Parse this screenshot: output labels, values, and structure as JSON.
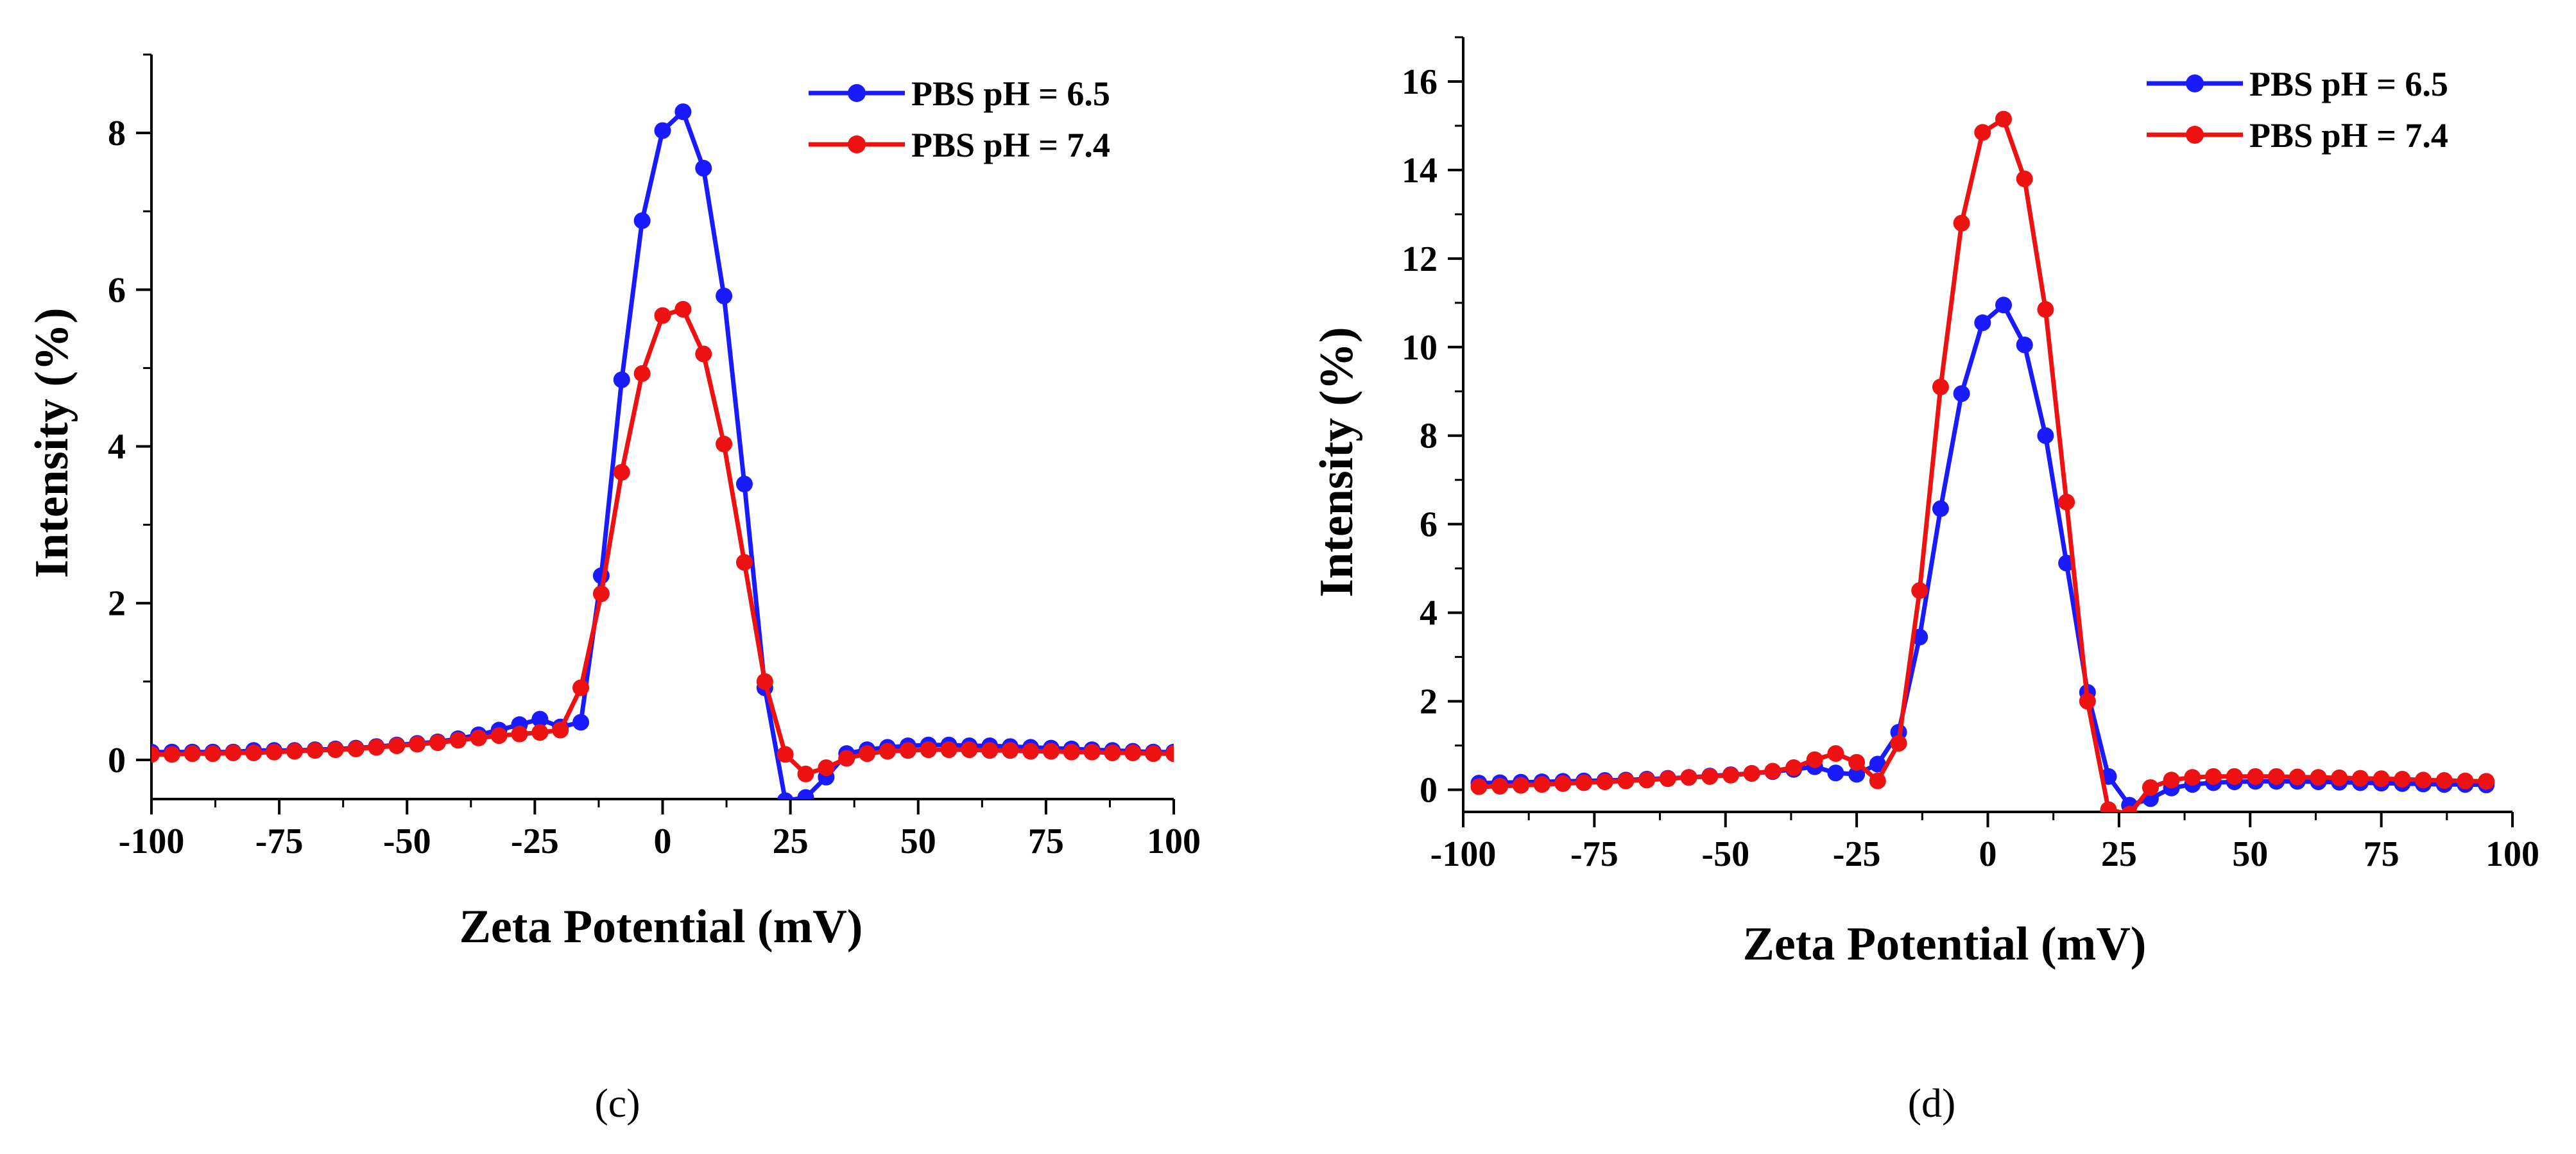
{
  "figure": {
    "panel_labels": [
      "(c)",
      "(d)"
    ]
  },
  "chart_data": [
    {
      "type": "line",
      "panel": "(c)",
      "title": "",
      "xlabel": "Zeta Potential (mV)",
      "ylabel": "Intensity (%)",
      "xlim": [
        -100,
        100
      ],
      "ylim": [
        -0.5,
        9
      ],
      "xticks": [
        -100,
        -75,
        -50,
        -25,
        0,
        25,
        50,
        75,
        100
      ],
      "yticks": [
        0,
        2,
        4,
        6,
        8
      ],
      "legend_position": "top-right",
      "series": [
        {
          "name": "PBS pH = 6.5",
          "color": "#1a1aff",
          "x": [
            -100,
            -96,
            -92,
            -88,
            -84,
            -80,
            -76,
            -72,
            -68,
            -64,
            -60,
            -56,
            -52,
            -48,
            -44,
            -40,
            -36,
            -32,
            -28,
            -24,
            -20,
            -16,
            -12,
            -8,
            -4,
            0,
            4,
            8,
            12,
            16,
            20,
            24,
            28,
            32,
            36,
            40,
            44,
            48,
            52,
            56,
            60,
            64,
            68,
            72,
            76,
            80,
            84,
            88,
            92,
            96,
            100
          ],
          "y": [
            0.1,
            0.1,
            0.1,
            0.1,
            0.1,
            0.12,
            0.12,
            0.12,
            0.13,
            0.14,
            0.15,
            0.17,
            0.19,
            0.21,
            0.23,
            0.27,
            0.32,
            0.38,
            0.45,
            0.52,
            0.42,
            0.48,
            2.35,
            4.85,
            6.88,
            8.03,
            8.27,
            7.55,
            5.92,
            3.52,
            0.92,
            -0.52,
            -0.48,
            -0.22,
            0.08,
            0.13,
            0.16,
            0.18,
            0.19,
            0.19,
            0.18,
            0.18,
            0.17,
            0.16,
            0.15,
            0.14,
            0.13,
            0.12,
            0.11,
            0.1,
            0.1
          ]
        },
        {
          "name": "PBS pH = 7.4",
          "color": "#ee1111",
          "x": [
            -100,
            -96,
            -92,
            -88,
            -84,
            -80,
            -76,
            -72,
            -68,
            -64,
            -60,
            -56,
            -52,
            -48,
            -44,
            -40,
            -36,
            -32,
            -28,
            -24,
            -20,
            -16,
            -12,
            -8,
            -4,
            0,
            4,
            8,
            12,
            16,
            20,
            24,
            28,
            32,
            36,
            40,
            44,
            48,
            52,
            56,
            60,
            64,
            68,
            72,
            76,
            80,
            84,
            88,
            92,
            96,
            100
          ],
          "y": [
            0.07,
            0.07,
            0.08,
            0.08,
            0.09,
            0.09,
            0.1,
            0.11,
            0.12,
            0.13,
            0.14,
            0.16,
            0.18,
            0.2,
            0.22,
            0.25,
            0.28,
            0.31,
            0.33,
            0.35,
            0.38,
            0.92,
            2.12,
            3.67,
            4.93,
            5.67,
            5.75,
            5.18,
            4.03,
            2.52,
            1.0,
            0.07,
            -0.18,
            -0.1,
            0.02,
            0.08,
            0.11,
            0.12,
            0.13,
            0.13,
            0.13,
            0.12,
            0.12,
            0.11,
            0.11,
            0.1,
            0.1,
            0.09,
            0.09,
            0.08,
            0.08
          ]
        }
      ]
    },
    {
      "type": "line",
      "panel": "(d)",
      "title": "",
      "xlabel": "Zeta Potential (mV)",
      "ylabel": "Intensity (%)",
      "xlim": [
        -100,
        100
      ],
      "ylim": [
        -0.5,
        17
      ],
      "xticks": [
        -100,
        -75,
        -50,
        -25,
        0,
        25,
        50,
        75,
        100
      ],
      "yticks": [
        0,
        2,
        4,
        6,
        8,
        10,
        12,
        14,
        16
      ],
      "legend_position": "top-right",
      "series": [
        {
          "name": "PBS pH = 6.5",
          "color": "#1a1aff",
          "x": [
            -97,
            -93,
            -89,
            -85,
            -81,
            -77,
            -73,
            -69,
            -65,
            -61,
            -57,
            -53,
            -49,
            -45,
            -41,
            -37,
            -33,
            -29,
            -25,
            -21,
            -17,
            -13,
            -9,
            -5,
            -1,
            3,
            7,
            11,
            15,
            19,
            23,
            27,
            31,
            35,
            39,
            43,
            47,
            51,
            55,
            59,
            63,
            67,
            71,
            75,
            79,
            83,
            87,
            91,
            95
          ],
          "y": [
            0.15,
            0.16,
            0.17,
            0.18,
            0.19,
            0.2,
            0.21,
            0.22,
            0.24,
            0.26,
            0.28,
            0.31,
            0.34,
            0.37,
            0.41,
            0.46,
            0.52,
            0.38,
            0.35,
            0.58,
            1.3,
            3.45,
            6.35,
            8.95,
            10.55,
            10.95,
            10.05,
            8.0,
            5.12,
            2.2,
            0.3,
            -0.35,
            -0.2,
            0.04,
            0.12,
            0.16,
            0.18,
            0.19,
            0.19,
            0.19,
            0.18,
            0.17,
            0.16,
            0.15,
            0.14,
            0.13,
            0.12,
            0.12,
            0.11
          ]
        },
        {
          "name": "PBS pH = 7.4",
          "color": "#ee1111",
          "x": [
            -97,
            -93,
            -89,
            -85,
            -81,
            -77,
            -73,
            -69,
            -65,
            -61,
            -57,
            -53,
            -49,
            -45,
            -41,
            -37,
            -33,
            -29,
            -25,
            -21,
            -17,
            -13,
            -9,
            -5,
            -1,
            3,
            7,
            11,
            15,
            19,
            23,
            27,
            31,
            35,
            39,
            43,
            47,
            51,
            55,
            59,
            63,
            67,
            71,
            75,
            79,
            83,
            87,
            91,
            95
          ],
          "y": [
            0.07,
            0.08,
            0.1,
            0.12,
            0.14,
            0.16,
            0.18,
            0.2,
            0.22,
            0.25,
            0.28,
            0.3,
            0.33,
            0.37,
            0.42,
            0.5,
            0.68,
            0.82,
            0.62,
            0.2,
            1.05,
            4.5,
            9.1,
            12.8,
            14.85,
            15.15,
            13.8,
            10.85,
            6.5,
            2.0,
            -0.45,
            -0.55,
            0.05,
            0.22,
            0.28,
            0.3,
            0.3,
            0.3,
            0.3,
            0.29,
            0.28,
            0.27,
            0.26,
            0.25,
            0.24,
            0.22,
            0.21,
            0.2,
            0.19
          ]
        }
      ]
    }
  ]
}
